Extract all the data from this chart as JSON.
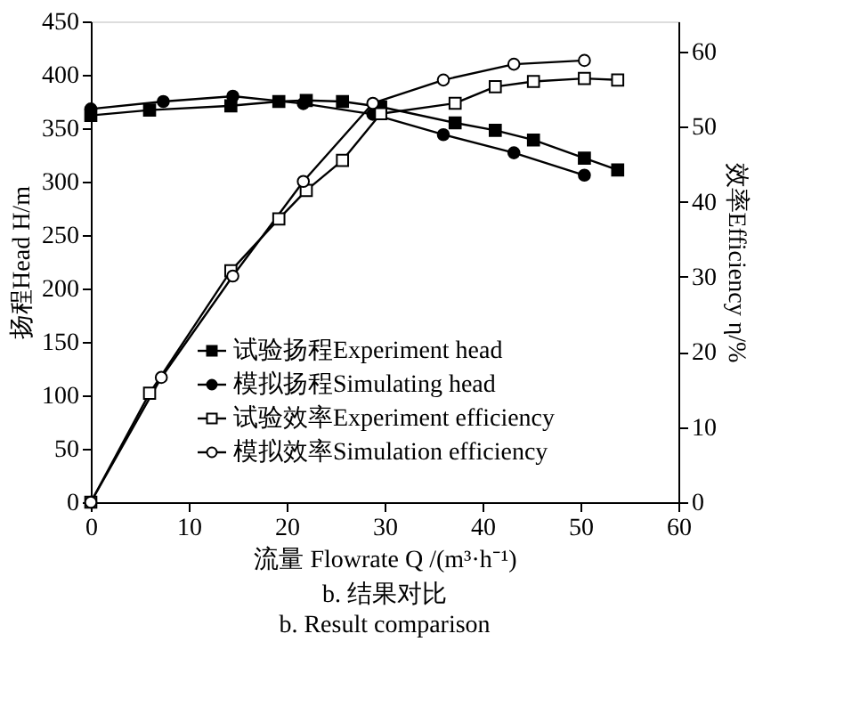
{
  "chart_data": {
    "type": "line",
    "title": "b. 结果对比",
    "subtitle": "b. Result comparison",
    "xlabel": "流量 Flowrate Q /(m³·h⁻¹)",
    "ylabel": "扬程Head H/m",
    "y2label": "效率Efficiency η/%",
    "xlim": [
      0,
      60
    ],
    "xticks": [
      0,
      10,
      20,
      30,
      40,
      50,
      60
    ],
    "ylim": [
      0,
      450
    ],
    "yticks": [
      0,
      50,
      100,
      150,
      200,
      250,
      300,
      350,
      400,
      450
    ],
    "y2lim": [
      0,
      64
    ],
    "y2ticks": [
      0,
      10,
      20,
      30,
      40,
      50,
      60
    ],
    "grid": false,
    "legend": "bottom right",
    "line_style": "solid",
    "series": [
      {
        "name": "试验扬程Experiment head",
        "color": "#000000",
        "marker": "square",
        "x": [
          0,
          6,
          14.3,
          19.2,
          22,
          25.7,
          29.6,
          37.2,
          41.3,
          45.2,
          50.4,
          53.8
        ],
        "values": [
          362,
          367,
          371,
          375,
          376,
          375,
          370,
          355,
          348,
          339,
          322,
          311
        ]
      },
      {
        "name": "模拟扬程Simulating head",
        "color": "#000000",
        "marker": "circle",
        "x": [
          0,
          7.4,
          14.5,
          21.7,
          28.8,
          36,
          43.2,
          50.4
        ],
        "values": [
          368,
          375,
          380,
          373,
          363,
          344,
          327,
          306
        ]
      },
      {
        "name": "试验效率Experiment efficiency",
        "color": "#ffffff",
        "marker": "square",
        "axis": "y2",
        "x": [
          0,
          6,
          14.3,
          19.2,
          22,
          25.7,
          29.6,
          37.2,
          41.3,
          45.2,
          50.4,
          53.8
        ],
        "values": [
          0,
          14.5,
          30.8,
          37.7,
          41.5,
          45.5,
          51.7,
          53.1,
          55.3,
          56,
          56.4,
          56.2
        ]
      },
      {
        "name": "模拟效率Simulation efficiency",
        "color": "#ffffff",
        "marker": "circle",
        "axis": "y2",
        "x": [
          0,
          7.2,
          14.5,
          21.7,
          28.8,
          36,
          43.2,
          50.4
        ],
        "values": [
          0,
          16.6,
          30.1,
          42.7,
          53.1,
          56.2,
          58.3,
          58.8
        ]
      }
    ]
  }
}
